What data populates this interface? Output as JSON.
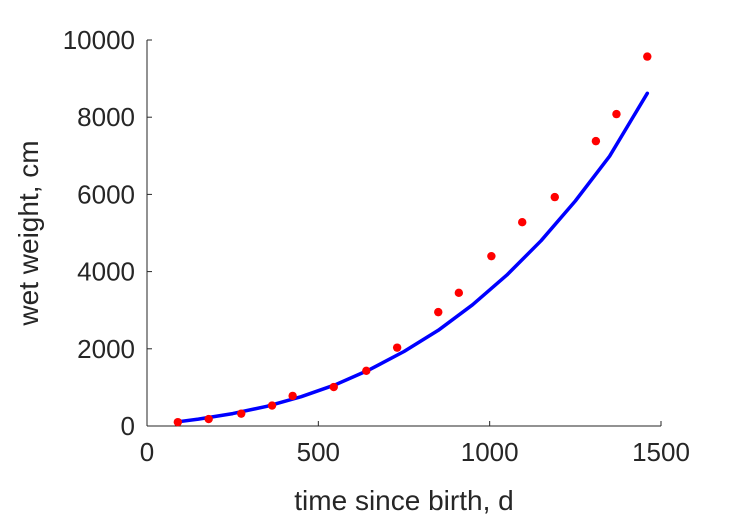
{
  "chart_data": {
    "type": "scatter",
    "xlabel": "time since birth, d",
    "ylabel": "wet weight, cm",
    "xlim": [
      0,
      1500
    ],
    "ylim": [
      0,
      10000
    ],
    "xticks": [
      0,
      500,
      1000,
      1500
    ],
    "yticks": [
      0,
      2000,
      4000,
      6000,
      8000,
      10000
    ],
    "grid": false,
    "series": [
      {
        "kind": "points",
        "color": "#ff0000",
        "x": [
          90,
          180,
          275,
          365,
          425,
          545,
          640,
          730,
          850,
          910,
          1005,
          1095,
          1190,
          1310,
          1370,
          1460
        ],
        "y": [
          100,
          180,
          320,
          530,
          780,
          1010,
          1430,
          2030,
          2950,
          3450,
          4400,
          5280,
          5930,
          7380,
          8080,
          9570
        ]
      },
      {
        "kind": "fit-line",
        "color": "#0000ff",
        "x": [
          90,
          150,
          250,
          350,
          450,
          550,
          650,
          750,
          850,
          950,
          1050,
          1150,
          1250,
          1350,
          1460
        ],
        "y": [
          110,
          180,
          320,
          510,
          760,
          1070,
          1460,
          1930,
          2480,
          3140,
          3910,
          4800,
          5830,
          6990,
          8620
        ]
      }
    ]
  }
}
